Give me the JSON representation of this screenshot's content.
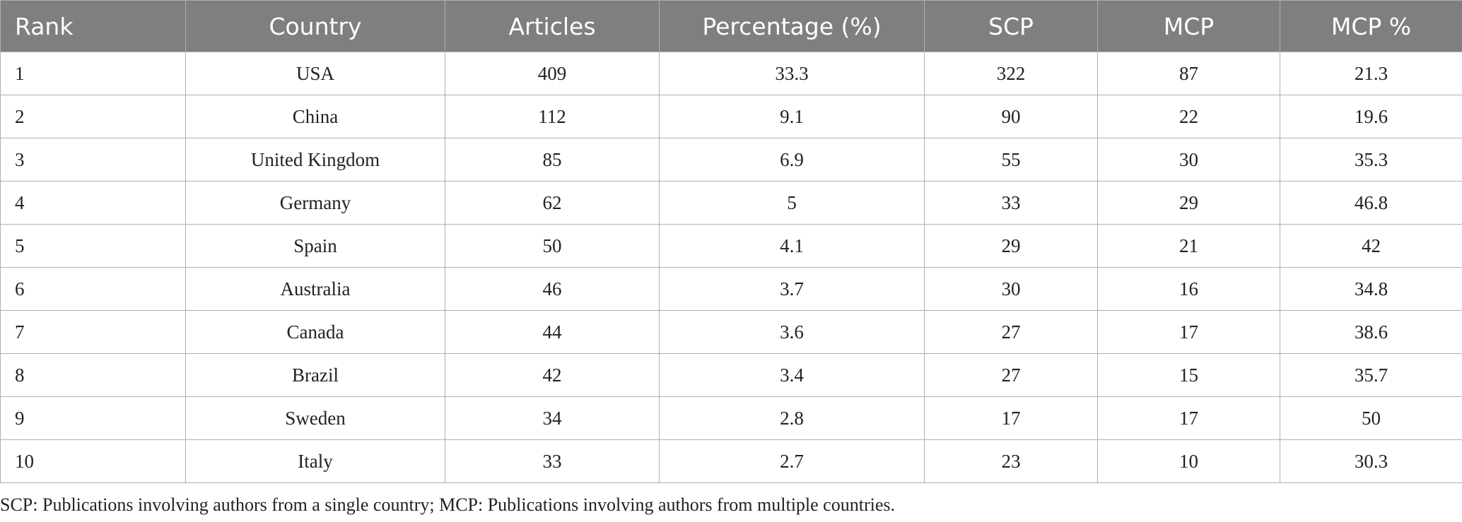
{
  "table": {
    "header": [
      "Rank",
      "Country",
      "Articles",
      "Percentage (%)",
      "SCP",
      "MCP",
      "MCP %"
    ],
    "rows": [
      [
        1,
        "USA",
        409,
        33.3,
        322,
        87,
        21.3
      ],
      [
        2,
        "China",
        112,
        9.1,
        90,
        22,
        19.6
      ],
      [
        3,
        "United Kingdom",
        85,
        6.9,
        55,
        30,
        35.3
      ],
      [
        4,
        "Germany",
        62,
        5,
        33,
        29,
        46.8
      ],
      [
        5,
        "Spain",
        50,
        4.1,
        29,
        21,
        42
      ],
      [
        6,
        "Australia",
        46,
        3.7,
        30,
        16,
        34.8
      ],
      [
        7,
        "Canada",
        44,
        3.6,
        27,
        17,
        38.6
      ],
      [
        8,
        "Brazil",
        42,
        3.4,
        27,
        15,
        35.7
      ],
      [
        9,
        "Sweden",
        34,
        2.8,
        17,
        17,
        50
      ],
      [
        10,
        "Italy",
        33,
        2.7,
        23,
        10,
        30.3
      ]
    ]
  },
  "footnote": "SCP: Publications involving authors from a single country; MCP: Publications involving authors from multiple countries."
}
